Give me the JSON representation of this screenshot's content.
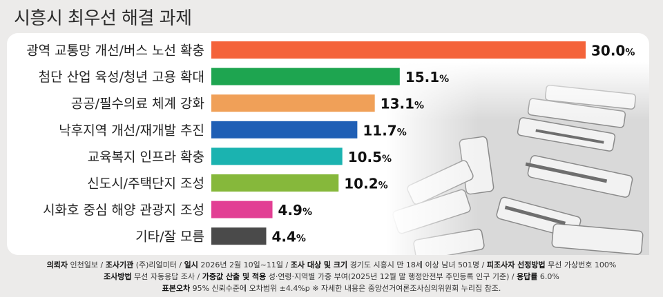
{
  "title": "시흥시 최우선 해결 과제",
  "chart_data": {
    "type": "bar",
    "orientation": "horizontal",
    "unit": "%",
    "xlim": [
      0,
      30
    ],
    "categories": [
      "광역 교통망 개선/버스 노선 확충",
      "첨단 산업 육성/청년 고용 확대",
      "공공/필수의료 체계 강화",
      "낙후지역 개선/재개발 추진",
      "교육복지 인프라 확충",
      "신도시/주택단지 조성",
      "시화호 중심 해양 관광지 조성",
      "기타/잘 모름"
    ],
    "values": [
      30.0,
      15.1,
      13.1,
      11.7,
      10.5,
      10.2,
      4.9,
      4.4
    ],
    "value_labels": [
      "30.0",
      "15.1",
      "13.1",
      "11.7",
      "10.5",
      "10.2",
      "4.9",
      "4.4"
    ],
    "colors": [
      "#f4633a",
      "#1ea550",
      "#f0a058",
      "#1f5fb5",
      "#1bb3b0",
      "#86b83b",
      "#e23f94",
      "#4a4a4a"
    ]
  },
  "footer": {
    "line1": [
      {
        "label": "의뢰자",
        "value": "인천일보"
      },
      {
        "label": "조사기관",
        "value": "(주)리얼미터"
      },
      {
        "label": "일시",
        "value": "2026년 2월 10일~11일"
      },
      {
        "label": "조사 대상 및 크기",
        "value": "경기도 시흥시 만 18세 이상 남녀 501명"
      },
      {
        "label": "피조사자 선정방법",
        "value": "무선 가상번호 100%"
      }
    ],
    "line2": [
      {
        "label": "조사방법",
        "value": "무선 자동응답 조사"
      },
      {
        "label": "가중값 산출 및 적용",
        "value": "성·연령·지역별 가중 부여(2025년 12월 말 행정안전부 주민등록 인구 기준)"
      },
      {
        "label": "응답률",
        "value": "6.0%"
      }
    ],
    "line3": [
      {
        "label": "표본오차",
        "value": "95% 신뢰수준에 오차범위 ±4.4%p"
      }
    ],
    "note": "※ 자세한 내용은 중앙선거여론조사심의위원회 누리집 참조."
  }
}
